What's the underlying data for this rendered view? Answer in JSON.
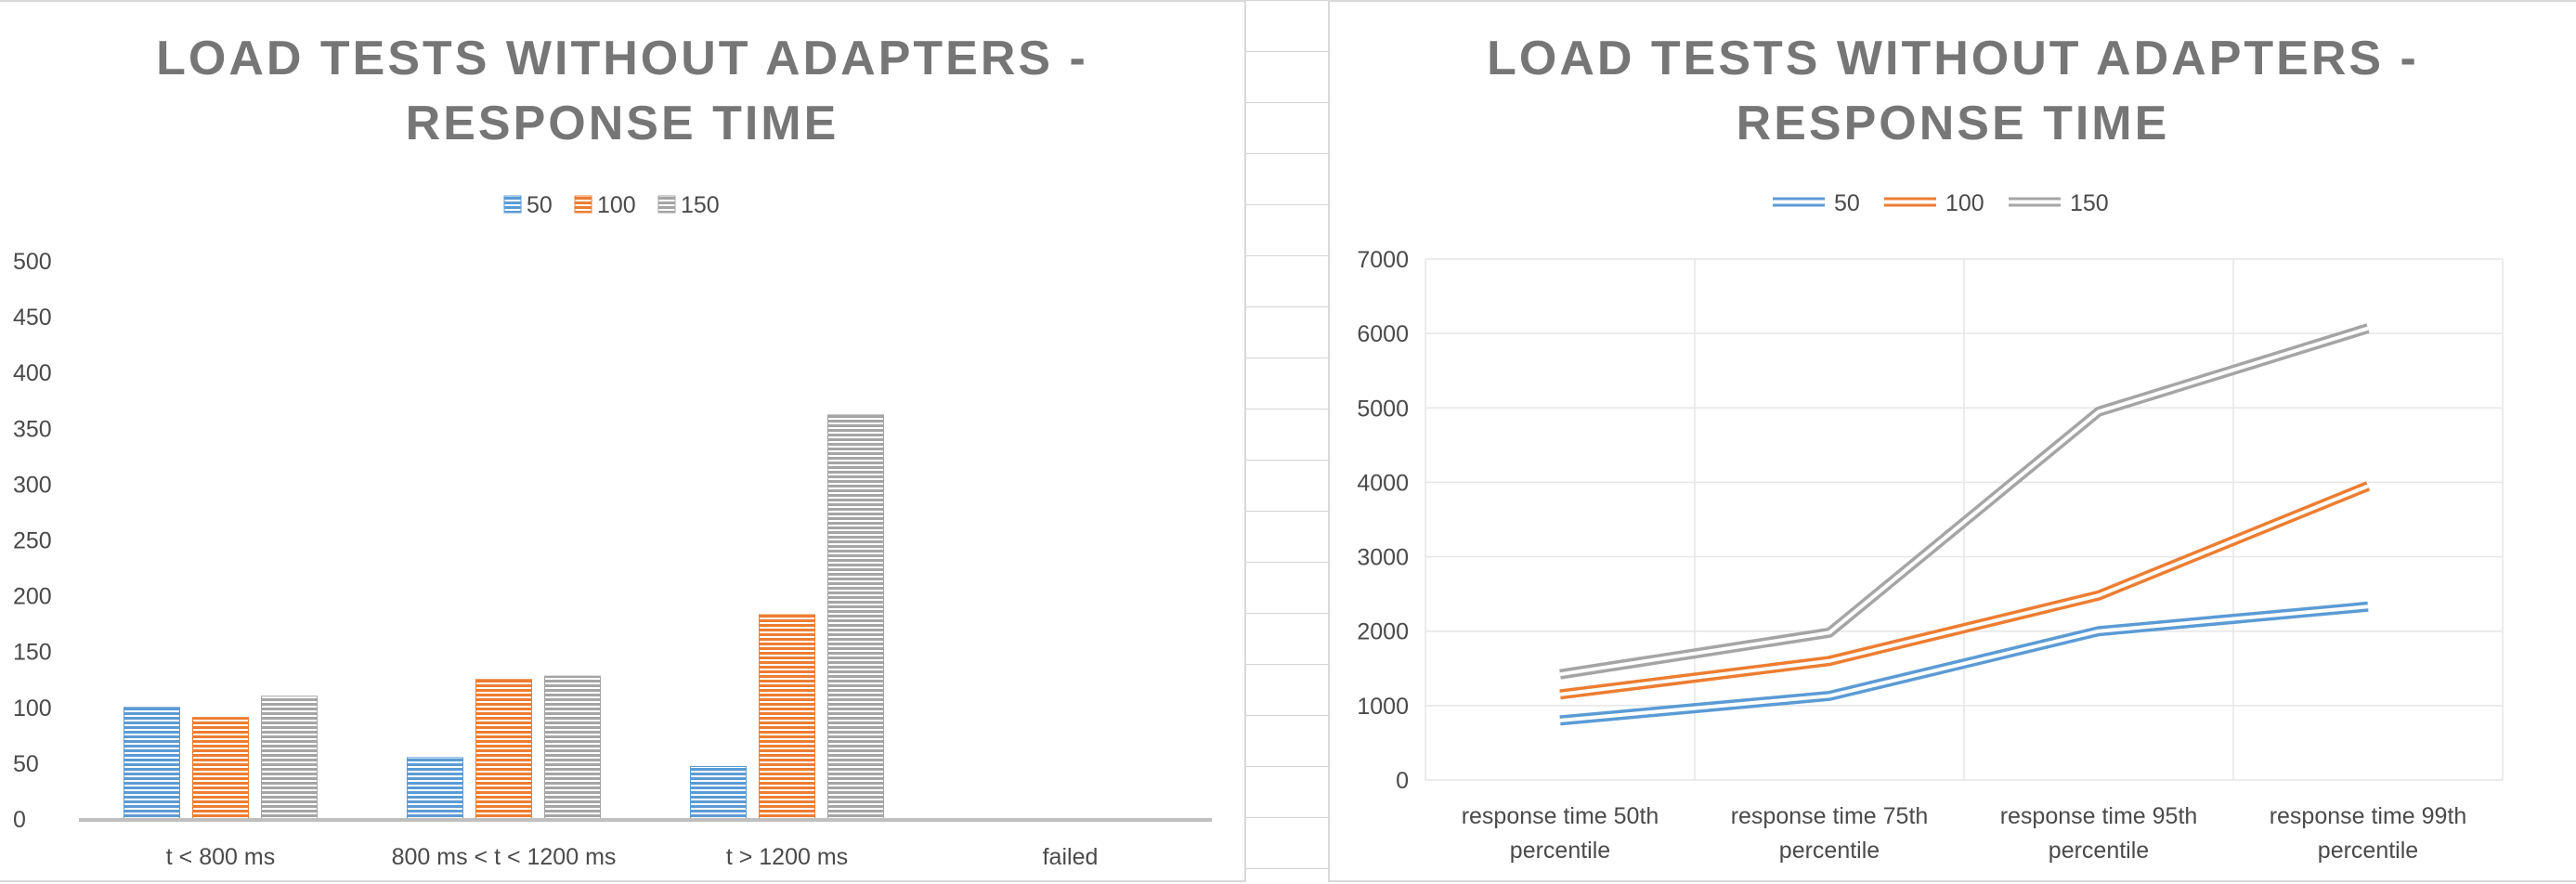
{
  "chart_data": [
    {
      "type": "bar",
      "title_lines": [
        "LOAD TESTS WITHOUT ADAPTERS -",
        "RESPONSE TIME"
      ],
      "categories": [
        "t < 800 ms",
        "800 ms < t < 1200 ms",
        "t > 1200 ms",
        "failed"
      ],
      "series": [
        {
          "name": "50",
          "values": [
            100,
            55,
            47,
            0
          ],
          "color": "#5b9bd5"
        },
        {
          "name": "100",
          "values": [
            91,
            125,
            183,
            0
          ],
          "color": "#ed7d31"
        },
        {
          "name": "150",
          "values": [
            110,
            128,
            362,
            0
          ],
          "color": "#a5a5a5"
        }
      ],
      "ylim": [
        0,
        500
      ],
      "yticks": [
        0,
        50,
        100,
        150,
        200,
        250,
        300,
        350,
        400,
        450,
        500
      ],
      "grid": false,
      "legend_position": "top"
    },
    {
      "type": "line",
      "title_lines": [
        "LOAD TESTS WITHOUT ADAPTERS -",
        "RESPONSE TIME"
      ],
      "categories": [
        [
          "response time 50th",
          "percentile"
        ],
        [
          "response time 75th",
          "percentile"
        ],
        [
          "response time 95th",
          "percentile"
        ],
        [
          "response time 99th",
          "percentile"
        ]
      ],
      "series": [
        {
          "name": "50",
          "values": [
            800,
            1130,
            2000,
            2330
          ],
          "color": "#5b9bd5"
        },
        {
          "name": "100",
          "values": [
            1150,
            1600,
            2480,
            3950
          ],
          "color": "#ed7d31"
        },
        {
          "name": "150",
          "values": [
            1420,
            1980,
            4950,
            6070
          ],
          "color": "#a5a5a5"
        }
      ],
      "ylim": [
        0,
        7000
      ],
      "yticks": [
        0,
        1000,
        2000,
        3000,
        4000,
        5000,
        6000,
        7000
      ],
      "grid": true,
      "legend_position": "top"
    }
  ]
}
